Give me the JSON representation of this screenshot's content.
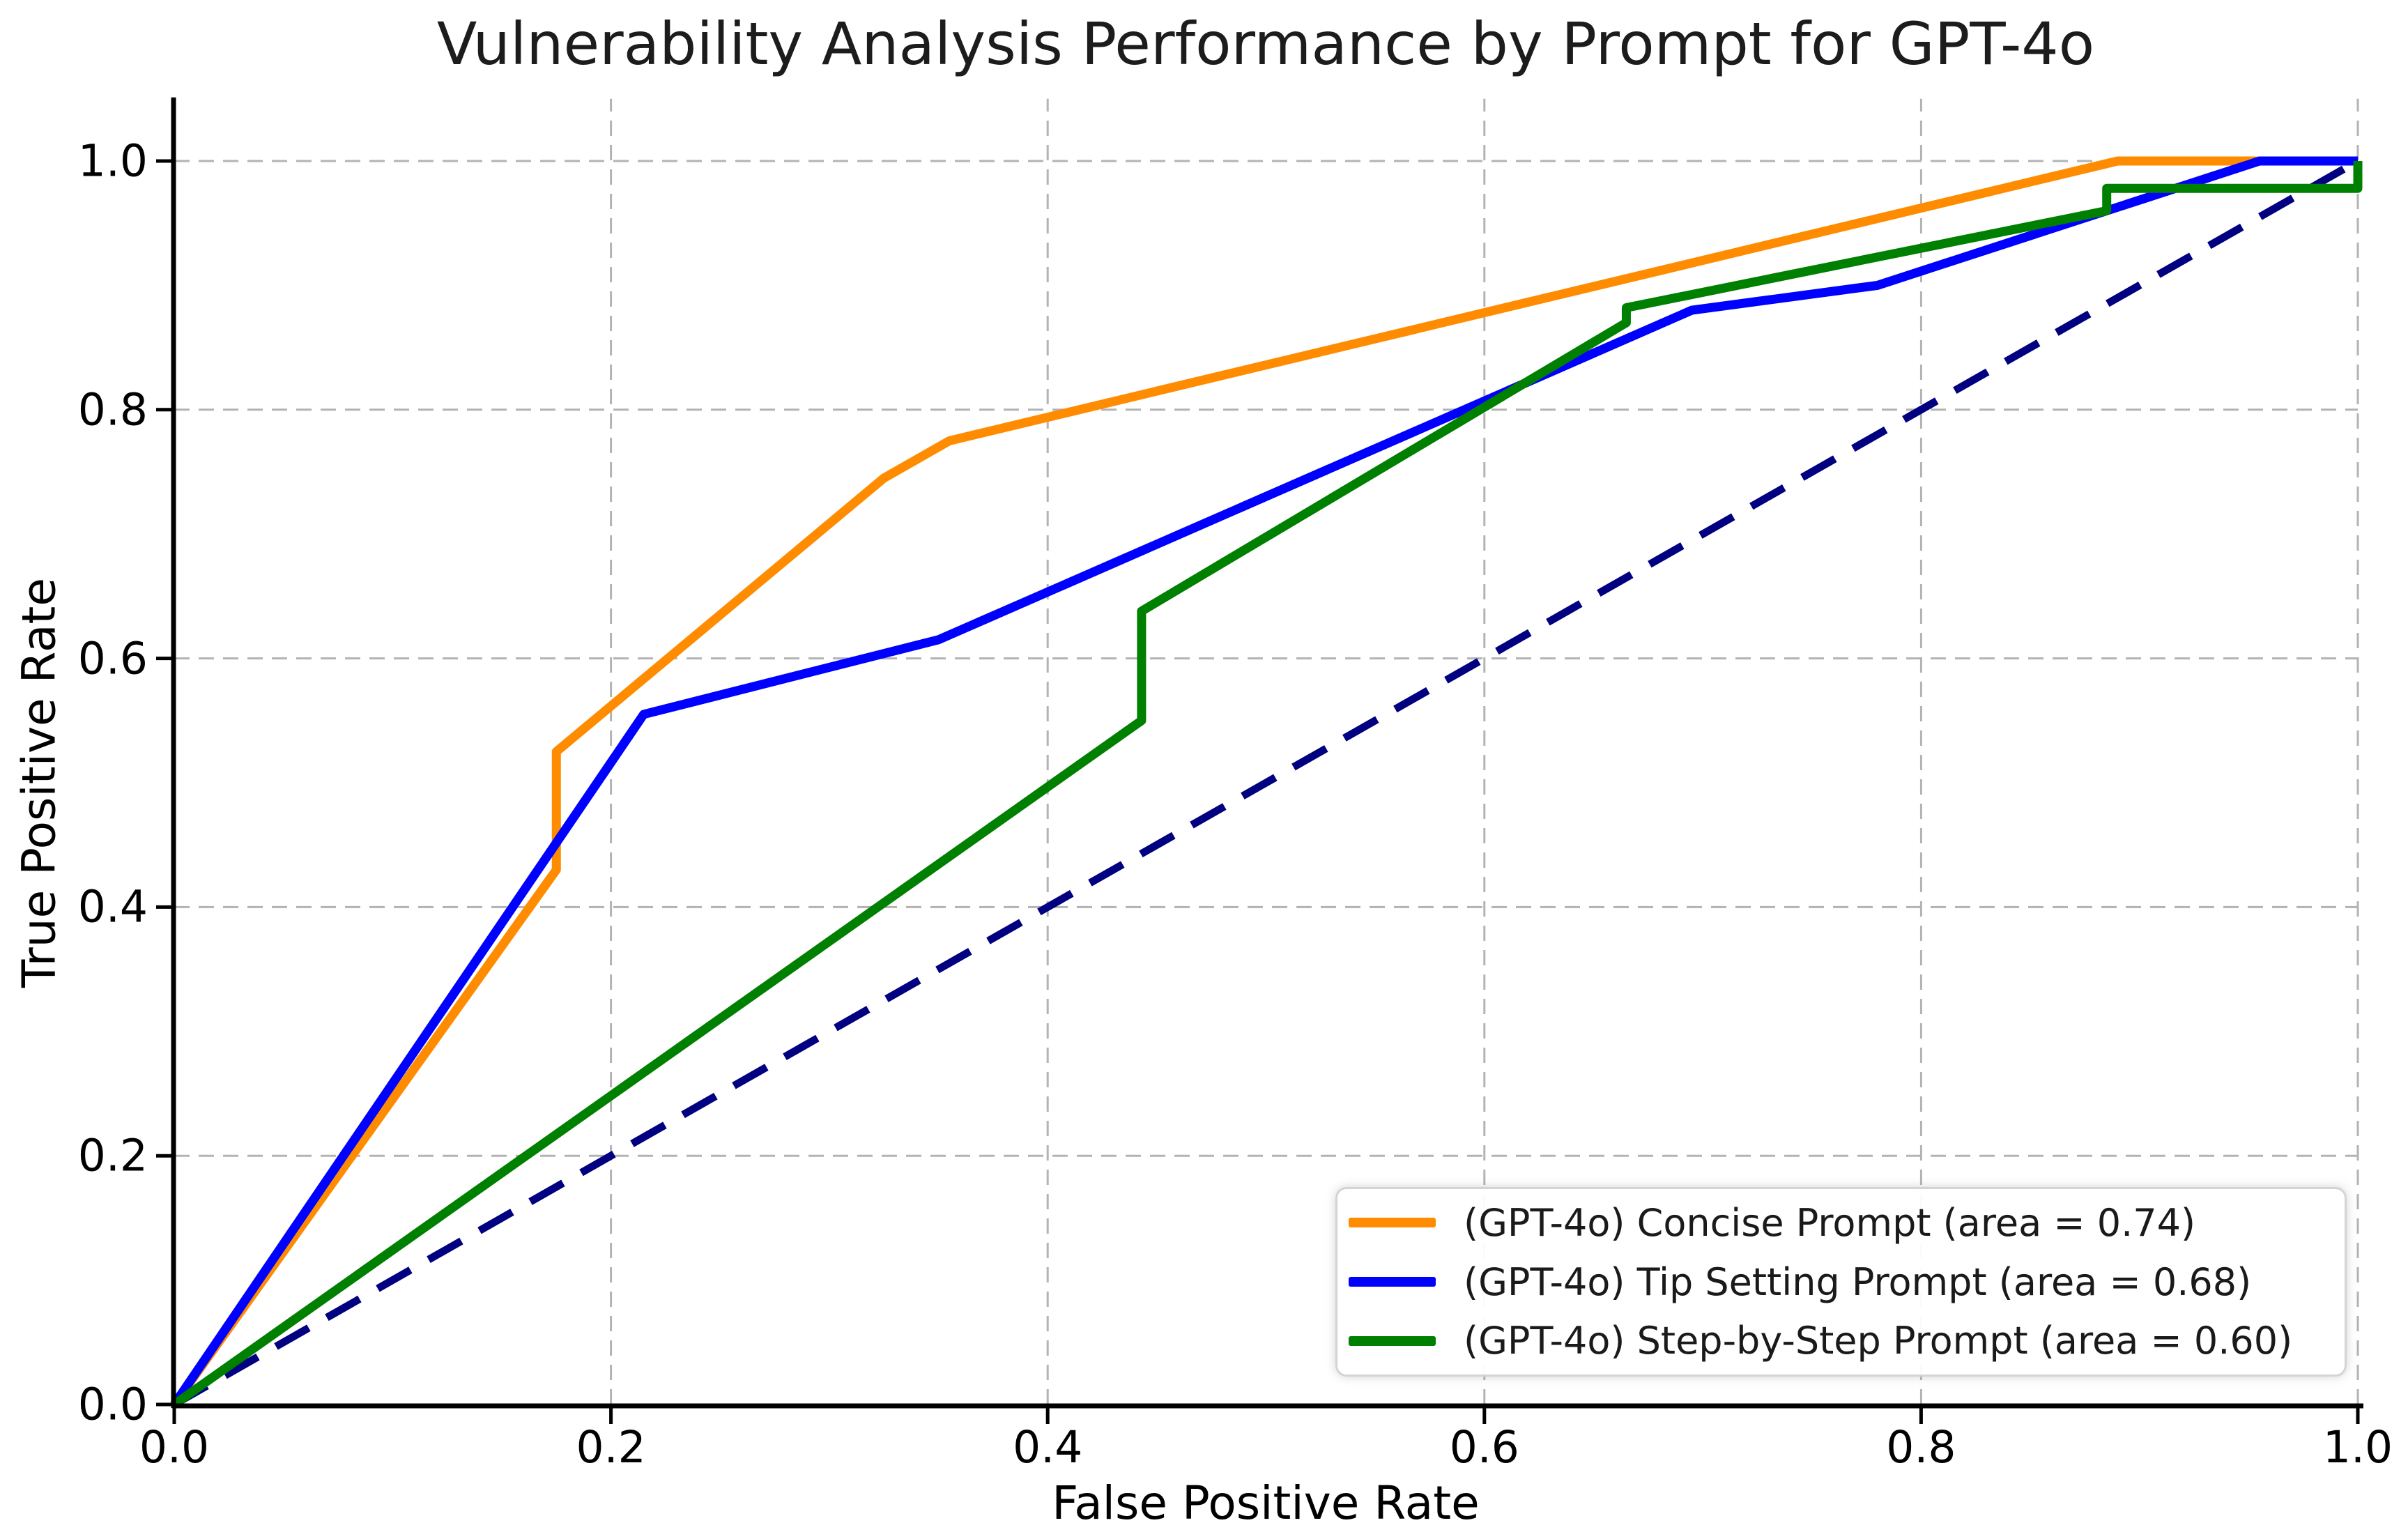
{
  "chart_data": {
    "type": "line",
    "title": "Vulnerability Analysis Performance by Prompt for GPT-4o",
    "xlabel": "False Positive Rate",
    "ylabel": "True Positive Rate",
    "xlim": [
      0.0,
      1.0
    ],
    "ylim": [
      0.0,
      1.05
    ],
    "x_ticks": [
      0.0,
      0.2,
      0.4,
      0.6,
      0.8,
      1.0
    ],
    "x_tick_labels": [
      "0.0",
      "0.2",
      "0.4",
      "0.6",
      "0.8",
      "1.0"
    ],
    "y_ticks": [
      0.0,
      0.2,
      0.4,
      0.6,
      0.8,
      1.0
    ],
    "y_tick_labels": [
      "0.0",
      "0.2",
      "0.4",
      "0.6",
      "0.8",
      "1.0"
    ],
    "grid": {
      "visible": true,
      "color": "#b3b3b3",
      "style": "dashed"
    },
    "legend_position": "lower right",
    "series": [
      {
        "key": "concise-prompt",
        "name": "(GPT-4o) Concise Prompt (area = 0.74)",
        "color": "#ff8c00",
        "auc": 0.74,
        "points": [
          [
            0.0,
            0.0
          ],
          [
            0.175,
            0.43
          ],
          [
            0.175,
            0.525
          ],
          [
            0.325,
            0.745
          ],
          [
            0.355,
            0.775
          ],
          [
            0.89,
            1.0
          ],
          [
            1.0,
            1.0
          ]
        ]
      },
      {
        "key": "tip-setting-prompt",
        "name": "(GPT-4o) Tip Setting Prompt (area = 0.68)",
        "color": "#0000ff",
        "auc": 0.68,
        "points": [
          [
            0.0,
            0.0
          ],
          [
            0.215,
            0.555
          ],
          [
            0.35,
            0.615
          ],
          [
            0.695,
            0.88
          ],
          [
            0.78,
            0.9
          ],
          [
            0.955,
            1.0
          ],
          [
            1.0,
            1.0
          ]
        ]
      },
      {
        "key": "step-by-step-prompt",
        "name": "(GPT-4o) Step-by-Step Prompt (area = 0.60)",
        "color": "#008000",
        "auc": 0.6,
        "points": [
          [
            0.0,
            0.0
          ],
          [
            0.443,
            0.55
          ],
          [
            0.443,
            0.638
          ],
          [
            0.665,
            0.87
          ],
          [
            0.665,
            0.882
          ],
          [
            0.885,
            0.96
          ],
          [
            0.885,
            0.978
          ],
          [
            1.0,
            0.978
          ],
          [
            1.0,
            1.0
          ]
        ]
      }
    ],
    "reference_line": {
      "name": "chance-diagonal",
      "color": "#000080",
      "style": "dashed",
      "points": [
        [
          0.0,
          0.0
        ],
        [
          1.0,
          1.0
        ]
      ]
    }
  }
}
